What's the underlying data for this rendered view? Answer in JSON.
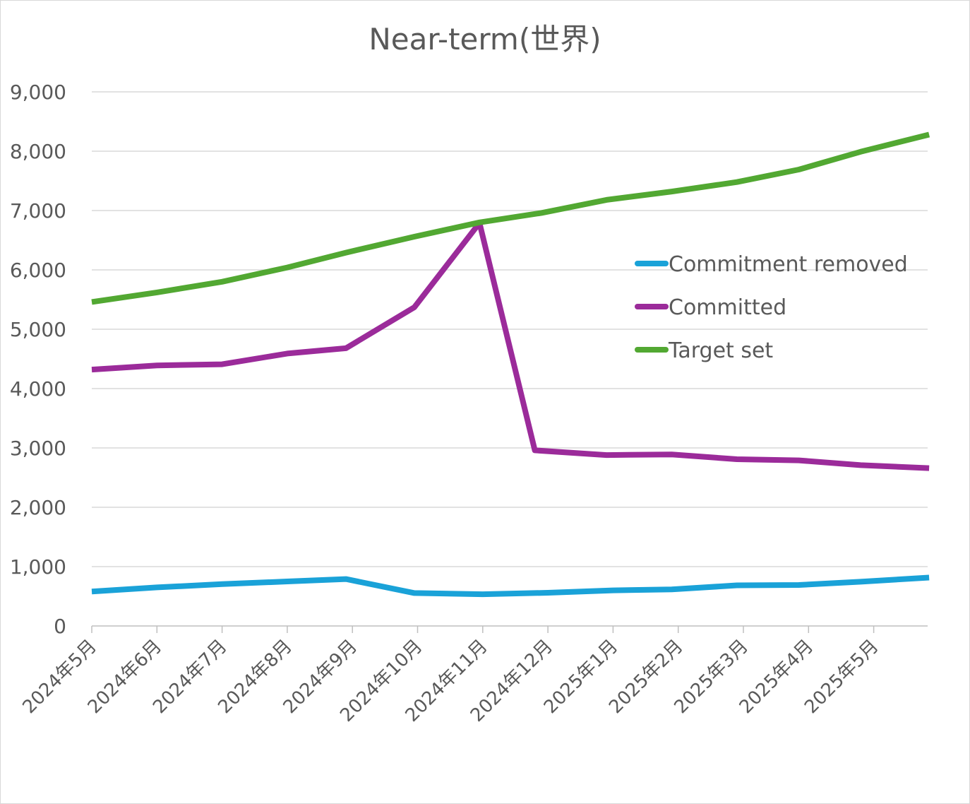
{
  "chart_data": {
    "type": "line",
    "title": "Near-term(世界)",
    "xlabel": "",
    "ylabel": "",
    "ylim": [
      0,
      9000
    ],
    "yticks": [
      "0",
      "1,000",
      "2,000",
      "3,000",
      "4,000",
      "5,000",
      "6,000",
      "7,000",
      "8,000",
      "9,000"
    ],
    "grid": true,
    "legend_position": "right-center",
    "categories": [
      "2024年5月",
      "2024年6月",
      "2024年7月",
      "2024年8月",
      "2024年9月",
      "2024年10月",
      "2024年11月",
      "2024年12月",
      "2025年1月",
      "2025年2月",
      "2025年3月",
      "2025年4月",
      "2025年5月"
    ],
    "x": [
      0,
      1,
      2,
      3,
      4,
      5,
      6,
      7,
      8,
      9,
      10,
      11,
      12
    ],
    "series": [
      {
        "name": "Commitment removed",
        "color": "#1aa2d8",
        "points": [
          [
            0,
            580
          ],
          [
            1,
            650
          ],
          [
            2,
            705
          ],
          [
            3,
            750
          ],
          [
            3.9,
            790
          ],
          [
            4.95,
            555
          ],
          [
            6,
            535
          ],
          [
            7,
            560
          ],
          [
            8,
            600
          ],
          [
            8.9,
            615
          ],
          [
            9.9,
            685
          ],
          [
            10.85,
            690
          ],
          [
            11.8,
            745
          ],
          [
            12.85,
            815
          ]
        ]
      },
      {
        "name": "Committed",
        "color": "#9b2b9a",
        "points": [
          [
            0,
            4320
          ],
          [
            1,
            4390
          ],
          [
            2,
            4410
          ],
          [
            3,
            4590
          ],
          [
            3.9,
            4680
          ],
          [
            4.95,
            5370
          ],
          [
            5.95,
            6790
          ],
          [
            6.8,
            2960
          ],
          [
            7.9,
            2880
          ],
          [
            8.9,
            2890
          ],
          [
            9.9,
            2810
          ],
          [
            10.85,
            2790
          ],
          [
            11.8,
            2710
          ],
          [
            12.85,
            2660
          ]
        ]
      },
      {
        "name": "Target set",
        "color": "#52a832",
        "points": [
          [
            0,
            5460
          ],
          [
            1,
            5620
          ],
          [
            2,
            5800
          ],
          [
            3,
            6040
          ],
          [
            3.9,
            6290
          ],
          [
            4.95,
            6560
          ],
          [
            5.95,
            6800
          ],
          [
            6.9,
            6960
          ],
          [
            7.9,
            7180
          ],
          [
            8.9,
            7320
          ],
          [
            9.9,
            7480
          ],
          [
            10.85,
            7690
          ],
          [
            11.8,
            7990
          ],
          [
            12.85,
            8280
          ]
        ]
      }
    ]
  }
}
